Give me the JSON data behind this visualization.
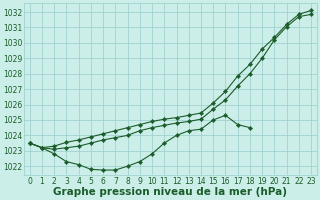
{
  "hours": [
    0,
    1,
    2,
    3,
    4,
    5,
    6,
    7,
    8,
    9,
    10,
    11,
    12,
    13,
    14,
    15,
    16,
    17,
    18,
    19,
    20,
    21,
    22,
    23
  ],
  "line_low": [
    1023.5,
    1023.2,
    1022.8,
    1022.3,
    1022.1,
    1021.8,
    1021.75,
    1021.75,
    1022.0,
    1022.3,
    1022.8,
    1023.5,
    1024.0,
    1024.3,
    1024.4,
    1025.0,
    1025.3,
    1024.7,
    1024.5,
    null,
    null,
    null,
    null,
    null
  ],
  "line_mid": [
    1023.5,
    1023.2,
    1023.1,
    1023.2,
    1023.3,
    1023.5,
    1023.7,
    1023.85,
    1024.0,
    1024.3,
    1024.5,
    1024.65,
    1024.8,
    1024.9,
    1025.05,
    1025.7,
    1026.3,
    1027.2,
    1028.0,
    1029.0,
    1030.2,
    1031.05,
    1031.7,
    1031.85
  ],
  "line_high": [
    1023.5,
    1023.2,
    1023.3,
    1023.55,
    1023.7,
    1023.9,
    1024.1,
    1024.3,
    1024.5,
    1024.7,
    1024.9,
    1025.05,
    1025.15,
    1025.3,
    1025.45,
    1026.1,
    1026.85,
    1027.85,
    1028.6,
    1029.6,
    1030.35,
    1031.2,
    1031.85,
    1032.1
  ],
  "bg_color": "#cceee8",
  "grid_color": "#99cccc",
  "line_color": "#1a5c2a",
  "ylabel_values": [
    1022,
    1023,
    1024,
    1025,
    1026,
    1027,
    1028,
    1029,
    1030,
    1031,
    1032
  ],
  "ylim": [
    1021.4,
    1032.6
  ],
  "xlim": [
    -0.5,
    23.5
  ],
  "xlabel": "Graphe pression niveau de la mer (hPa)",
  "xlabel_fontsize": 7.5,
  "tick_fontsize": 5.5,
  "figsize": [
    3.2,
    2.0
  ],
  "dpi": 100
}
